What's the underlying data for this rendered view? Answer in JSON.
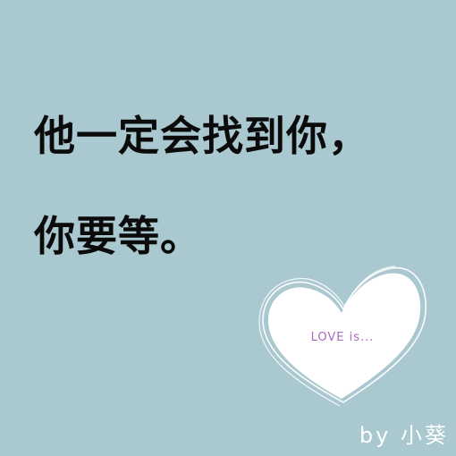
{
  "background": {
    "color": "#aac8cf"
  },
  "main_text": {
    "line1": "他一定会找到你，",
    "line2": "你要等。"
  },
  "heart": {
    "label": "LOVE is...",
    "fill": "#ffffff",
    "outline": "#ffffff",
    "label_color": "#a868c4"
  },
  "signature": {
    "text": "by 小葵"
  }
}
